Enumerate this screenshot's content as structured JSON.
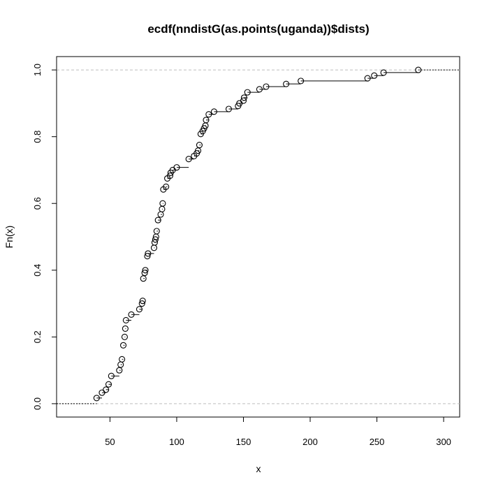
{
  "chart_data": {
    "type": "line",
    "subtype": "ecdf-step",
    "title": "ecdf(nndistG(as.points(uganda))$dists)",
    "xlabel": "x",
    "ylabel": "Fn(x)",
    "xlim": [
      10,
      312
    ],
    "ylim": [
      -0.04,
      1.04
    ],
    "x_ticks": [
      50,
      100,
      150,
      200,
      250,
      300
    ],
    "x_tick_labels": [
      "50",
      "100",
      "150",
      "200",
      "250",
      "300"
    ],
    "y_ticks": [
      0.0,
      0.2,
      0.4,
      0.6,
      0.8,
      1.0
    ],
    "y_tick_labels": [
      "0.0",
      "0.2",
      "0.4",
      "0.6",
      "0.8",
      "1.0"
    ],
    "reference_lines": [
      0,
      1
    ],
    "grid": false,
    "colors": {
      "line": "#000000",
      "reference": "#bebebe",
      "points": "#000000"
    },
    "points": [
      {
        "x": 40,
        "y": 0.017
      },
      {
        "x": 44,
        "y": 0.033
      },
      {
        "x": 47,
        "y": 0.042
      },
      {
        "x": 49,
        "y": 0.058
      },
      {
        "x": 51,
        "y": 0.083
      },
      {
        "x": 57,
        "y": 0.1
      },
      {
        "x": 58,
        "y": 0.117
      },
      {
        "x": 59,
        "y": 0.133
      },
      {
        "x": 60,
        "y": 0.175
      },
      {
        "x": 61,
        "y": 0.2
      },
      {
        "x": 61.5,
        "y": 0.225
      },
      {
        "x": 62,
        "y": 0.25
      },
      {
        "x": 66,
        "y": 0.267
      },
      {
        "x": 72,
        "y": 0.283
      },
      {
        "x": 74,
        "y": 0.3
      },
      {
        "x": 74.5,
        "y": 0.308
      },
      {
        "x": 75,
        "y": 0.375
      },
      {
        "x": 76,
        "y": 0.392
      },
      {
        "x": 76.5,
        "y": 0.4
      },
      {
        "x": 78,
        "y": 0.442
      },
      {
        "x": 78.5,
        "y": 0.45
      },
      {
        "x": 83,
        "y": 0.467
      },
      {
        "x": 83.5,
        "y": 0.483
      },
      {
        "x": 84,
        "y": 0.492
      },
      {
        "x": 84.5,
        "y": 0.5
      },
      {
        "x": 85,
        "y": 0.517
      },
      {
        "x": 86,
        "y": 0.55
      },
      {
        "x": 88,
        "y": 0.567
      },
      {
        "x": 89,
        "y": 0.583
      },
      {
        "x": 89.5,
        "y": 0.6
      },
      {
        "x": 90,
        "y": 0.642
      },
      {
        "x": 92,
        "y": 0.65
      },
      {
        "x": 93,
        "y": 0.675
      },
      {
        "x": 95,
        "y": 0.683
      },
      {
        "x": 95.5,
        "y": 0.692
      },
      {
        "x": 97,
        "y": 0.7
      },
      {
        "x": 100,
        "y": 0.708
      },
      {
        "x": 109,
        "y": 0.733
      },
      {
        "x": 113,
        "y": 0.742
      },
      {
        "x": 115,
        "y": 0.75
      },
      {
        "x": 116,
        "y": 0.758
      },
      {
        "x": 117,
        "y": 0.775
      },
      {
        "x": 118,
        "y": 0.808
      },
      {
        "x": 119.5,
        "y": 0.817
      },
      {
        "x": 120.5,
        "y": 0.825
      },
      {
        "x": 121.5,
        "y": 0.833
      },
      {
        "x": 122,
        "y": 0.85
      },
      {
        "x": 124,
        "y": 0.867
      },
      {
        "x": 128,
        "y": 0.875
      },
      {
        "x": 139,
        "y": 0.883
      },
      {
        "x": 146,
        "y": 0.892
      },
      {
        "x": 147,
        "y": 0.9
      },
      {
        "x": 150,
        "y": 0.908
      },
      {
        "x": 150.5,
        "y": 0.917
      },
      {
        "x": 153,
        "y": 0.933
      },
      {
        "x": 162,
        "y": 0.942
      },
      {
        "x": 167,
        "y": 0.95
      },
      {
        "x": 182,
        "y": 0.958
      },
      {
        "x": 193,
        "y": 0.967
      },
      {
        "x": 243,
        "y": 0.975
      },
      {
        "x": 248,
        "y": 0.983
      },
      {
        "x": 255,
        "y": 0.992
      },
      {
        "x": 281,
        "y": 1.0
      }
    ]
  }
}
